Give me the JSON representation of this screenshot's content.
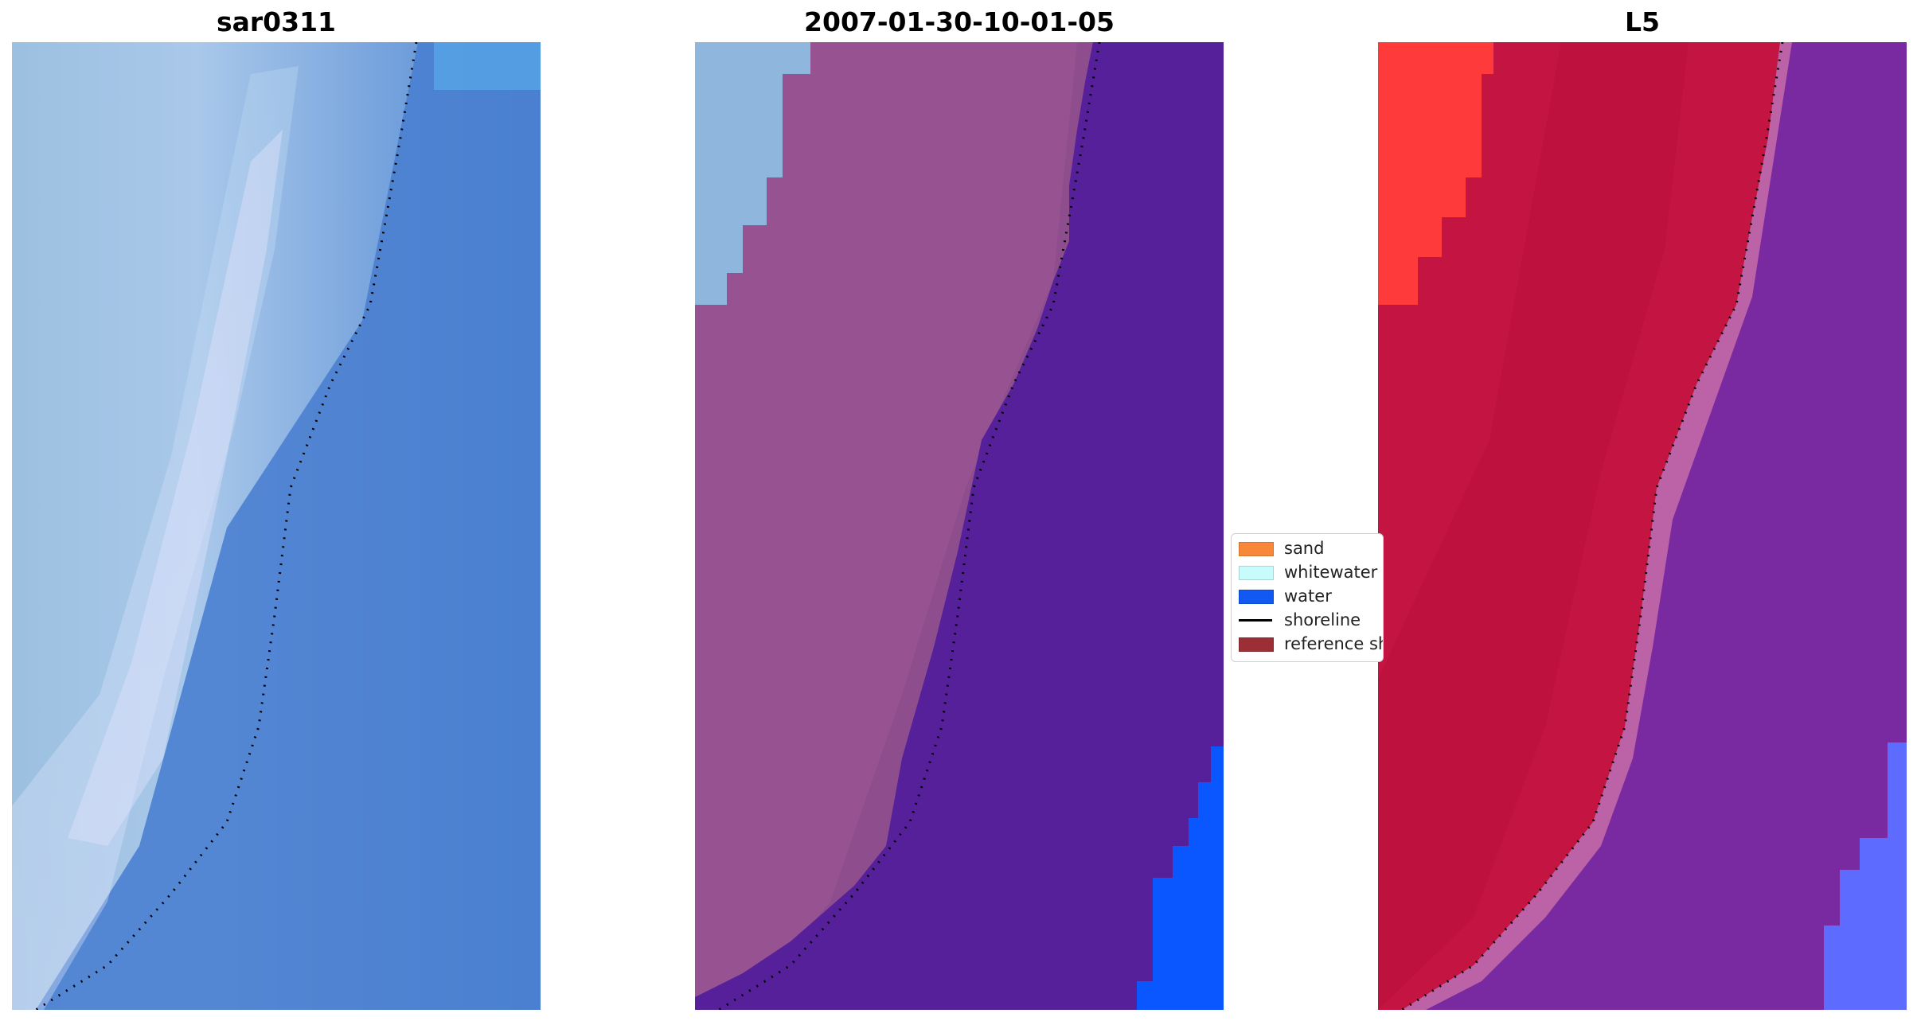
{
  "panels": [
    {
      "title": "sar0311"
    },
    {
      "title": "2007-01-30-10-01-05"
    },
    {
      "title": "L5"
    }
  ],
  "legend": {
    "items": [
      {
        "label": "sand",
        "color": "#f7883a",
        "kind": "patch"
      },
      {
        "label": "whitewater",
        "color": "#c8fbfb",
        "kind": "patch"
      },
      {
        "label": "water",
        "color": "#1259f2",
        "kind": "patch"
      },
      {
        "label": "shoreline",
        "color": "#000000",
        "kind": "line"
      },
      {
        "label": "reference shoreline",
        "color": "#9b2f35",
        "kind": "patch"
      }
    ]
  },
  "colors": {
    "rgb_beach": "#9fc3e4",
    "rgb_water": "#4a7fd0",
    "classified_sand": "#8e4d8c",
    "classified_water": "#55209a",
    "classified_whitewater": "#8fb6dc",
    "classified_water_blue": "#0a56ff",
    "index_land": "#c41442",
    "index_water": "#7a2aa0",
    "index_land_bright": "#ff3a3a",
    "index_water_blue": "#5d6cff"
  }
}
